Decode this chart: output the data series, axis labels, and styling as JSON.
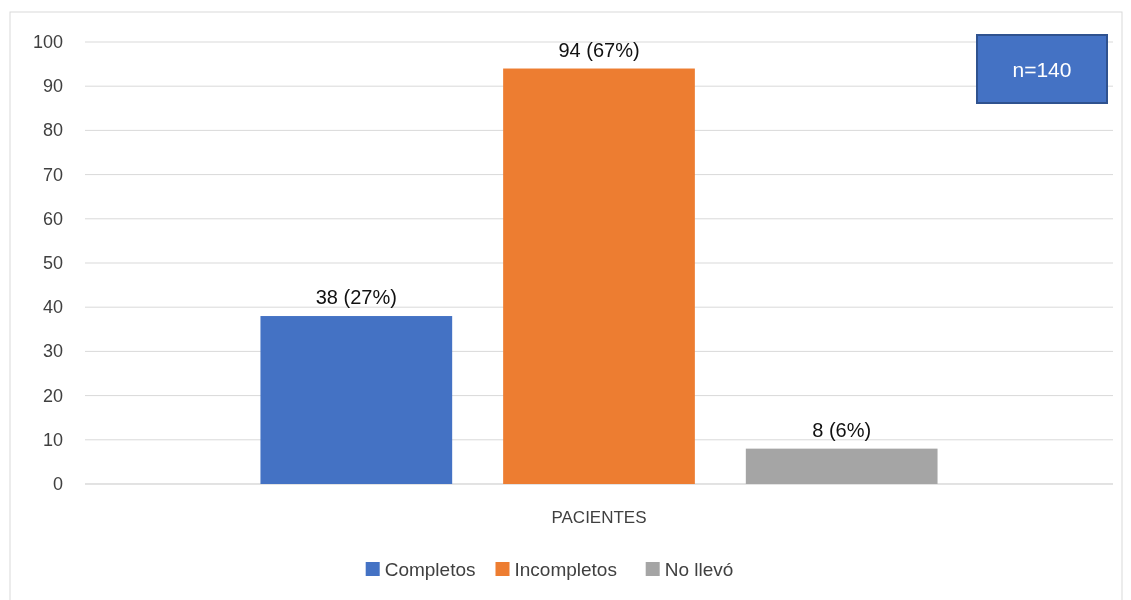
{
  "chart_data": {
    "type": "bar",
    "categories": [
      "PACIENTES"
    ],
    "series": [
      {
        "name": "Completos",
        "color": "#4472c4",
        "values": [
          38
        ],
        "value_labels": [
          "38 (27%)"
        ]
      },
      {
        "name": "Incompletos",
        "color": "#ed7d31",
        "values": [
          94
        ],
        "value_labels": [
          "94 (67%)"
        ]
      },
      {
        "name": "No llevó",
        "color": "#a5a5a5",
        "values": [
          8
        ],
        "value_labels": [
          "8 (6%)"
        ]
      }
    ],
    "ylim": [
      0,
      100
    ],
    "yticks": [
      0,
      10,
      20,
      30,
      40,
      50,
      60,
      70,
      80,
      90,
      100
    ],
    "grid": "y",
    "legend": "bottom",
    "annotations": [
      "n=140"
    ]
  }
}
